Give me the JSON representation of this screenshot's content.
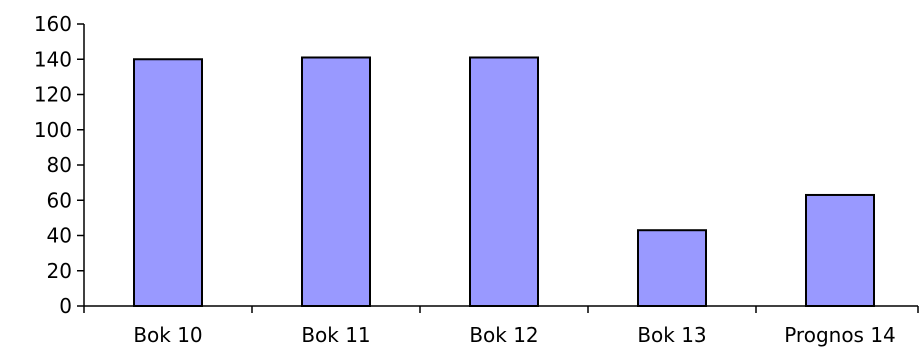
{
  "chart_data": {
    "type": "bar",
    "categories": [
      "Bok 10",
      "Bok 11",
      "Bok 12",
      "Bok 13",
      "Prognos 14"
    ],
    "values": [
      140,
      141,
      141,
      43,
      63
    ],
    "title": "",
    "xlabel": "",
    "ylabel": "",
    "ylim": [
      0,
      160
    ],
    "yticks": [
      0,
      20,
      40,
      60,
      80,
      100,
      120,
      140,
      160
    ],
    "bar_color": "#9999ff",
    "bar_border_color": "#000000",
    "grid": false,
    "legend": "none"
  }
}
